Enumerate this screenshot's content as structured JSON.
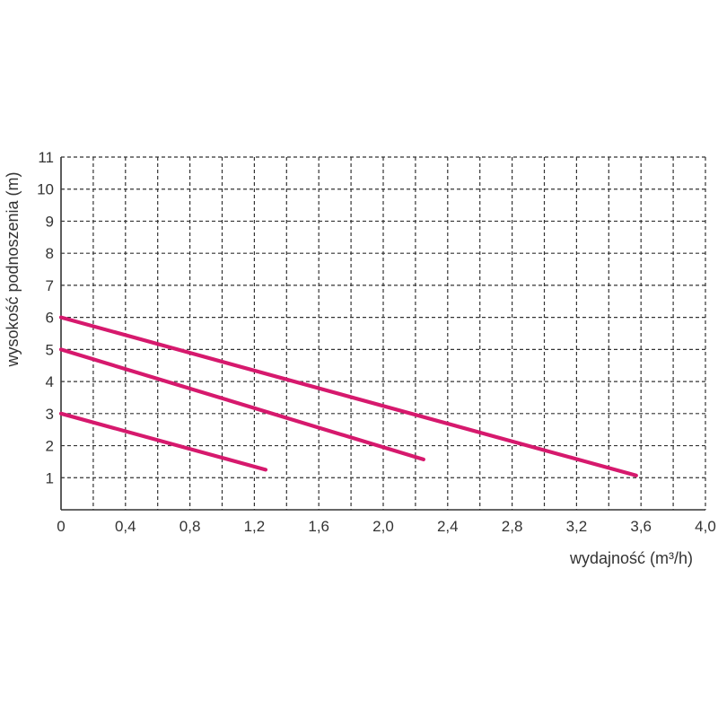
{
  "chart_data": {
    "type": "line",
    "title": "",
    "xlabel": "wydajność (m³/h)",
    "ylabel": "wysokość podnoszenia (m)",
    "xlim": [
      0,
      4.0
    ],
    "ylim": [
      0,
      11
    ],
    "x_ticks": [
      {
        "value": 0,
        "label": "0"
      },
      {
        "value": 0.4,
        "label": "0,4"
      },
      {
        "value": 0.8,
        "label": "0,8"
      },
      {
        "value": 1.2,
        "label": "1,2"
      },
      {
        "value": 1.6,
        "label": "1,6"
      },
      {
        "value": 2.0,
        "label": "2,0"
      },
      {
        "value": 2.4,
        "label": "2,4"
      },
      {
        "value": 2.8,
        "label": "2,8"
      },
      {
        "value": 3.2,
        "label": "3,2"
      },
      {
        "value": 3.6,
        "label": "3,6"
      },
      {
        "value": 4.0,
        "label": "4,0"
      }
    ],
    "x_grid_step": 0.2,
    "y_ticks": [
      {
        "value": 1,
        "label": "1"
      },
      {
        "value": 2,
        "label": "2"
      },
      {
        "value": 3,
        "label": "3"
      },
      {
        "value": 4,
        "label": "4"
      },
      {
        "value": 5,
        "label": "5"
      },
      {
        "value": 6,
        "label": "6"
      },
      {
        "value": 7,
        "label": "7"
      },
      {
        "value": 8,
        "label": "8"
      },
      {
        "value": 9,
        "label": "9"
      },
      {
        "value": 10,
        "label": "10"
      },
      {
        "value": 11,
        "label": "11"
      }
    ],
    "grid": true,
    "grid_style": "dashed",
    "line_color": "#d6196d",
    "grid_color": "#333333",
    "series": [
      {
        "points": [
          [
            0,
            6.0
          ],
          [
            3.57,
            1.07
          ]
        ]
      },
      {
        "points": [
          [
            0,
            5.0
          ],
          [
            2.25,
            1.57
          ]
        ]
      },
      {
        "points": [
          [
            0,
            3.0
          ],
          [
            1.27,
            1.25
          ]
        ]
      }
    ]
  }
}
